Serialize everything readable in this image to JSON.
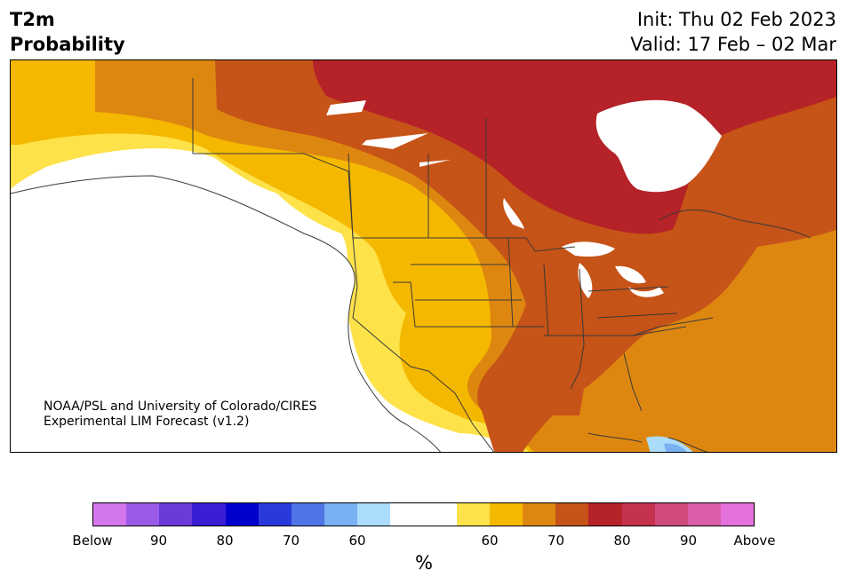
{
  "title": {
    "line1": "T2m",
    "line2": "Probability"
  },
  "dates": {
    "init": "Init: Thu 02 Feb 2023",
    "valid": "Valid: 17 Feb – 02 Mar"
  },
  "credit": {
    "line1": "NOAA/PSL and University of Colorado/CIRES",
    "line2": "Experimental LIM Forecast (v1.2)"
  },
  "colorbar": {
    "colors": [
      "#d476ec",
      "#9c5ae8",
      "#6b3bd9",
      "#3a1ed6",
      "#0000cd",
      "#2a3ad8",
      "#4f74e6",
      "#78b0f2",
      "#acdcfb",
      "#ffffff",
      "#ffffff",
      "#fee24a",
      "#f5b800",
      "#de8710",
      "#c65317",
      "#b52227",
      "#c5324e",
      "#d04b7b",
      "#dc5ea8",
      "#e571dd"
    ],
    "ticks": [
      "Below",
      "90",
      "80",
      "70",
      "60",
      "60",
      "70",
      "80",
      "90",
      "Above"
    ],
    "unit": "%"
  },
  "map_legend_colors": {
    "p60": "#fee24a",
    "p65": "#f5b800",
    "p70": "#de8710",
    "p75": "#c65317",
    "p80": "#b52227",
    "below60": "#78b0f2",
    "below55": "#acdcfb",
    "border": "#3a3a3a"
  }
}
